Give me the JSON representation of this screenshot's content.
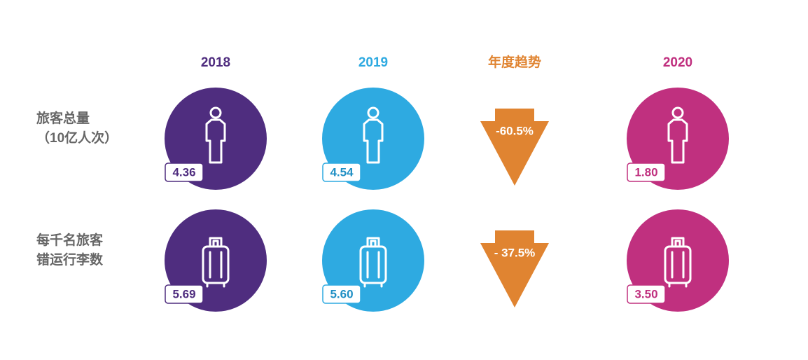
{
  "headers": [
    "2018",
    "2019",
    "年度趋势",
    "2020"
  ],
  "rows": [
    {
      "label": [
        "旅客总量",
        "（10亿人次）"
      ],
      "cells": [
        "4.36",
        "4.54",
        "-60.5%",
        "1.80"
      ]
    },
    {
      "label": [
        "每千名旅客",
        "错运行李数"
      ],
      "cells": [
        "5.69",
        "5.60",
        "- 37.5%",
        "3.50"
      ]
    }
  ]
}
